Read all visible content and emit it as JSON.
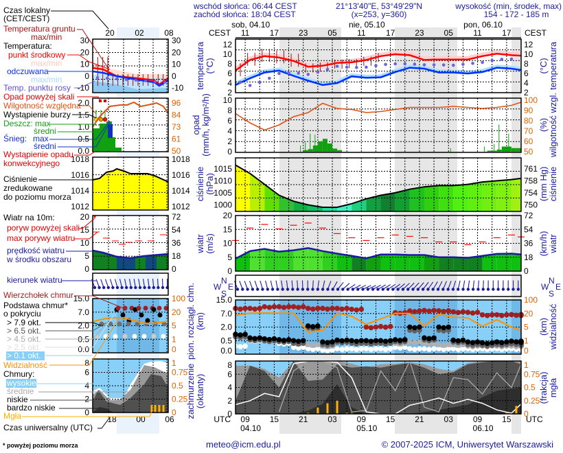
{
  "header": {
    "sunrise": "wschód słońca: 06:44 CEST",
    "sunset": "zachód słońca: 18:04 CEST",
    "coords": "21°13'40\"E, 53°49'29\"N",
    "grid": "(x=253,  y=360)",
    "elevation_title": "wysokość (min, środek, max)",
    "elevation": "154 - 172 - 185 m"
  },
  "time_axis": {
    "tz_top": "CEST",
    "tz_bottom": "UTC",
    "days_top": [
      "sob, 04.10",
      "nie, 05.10",
      "pon, 06.10"
    ],
    "days_bottom": [
      "04.10",
      "05.10",
      "06.10"
    ],
    "hours_cest": [
      "11",
      "17",
      "23",
      "05",
      "11",
      "17",
      "23",
      "05",
      "11",
      "17"
    ],
    "hours_utc": [
      "09",
      "15",
      "21",
      "03",
      "09",
      "15",
      "21",
      "03",
      "09",
      "15"
    ]
  },
  "legend": {
    "local_time": "Czas lokalny",
    "local_time2": "(CET/CEST)",
    "local_hours": [
      "20",
      "02",
      "08"
    ],
    "utc_hours": [
      "18",
      "00",
      "06"
    ],
    "ground_temp": "Temperatura gruntu",
    "ground_temp2": "max/min",
    "temperature": "Temperatura:",
    "midpoint": "punkt środkowy",
    "maxmin1": "max/min",
    "feels": "odczuwana",
    "maxmin2": "max/min",
    "dew": "Temp. punktu rosy",
    "precip_above": "Opad powyżej skali",
    "rh": "Wilgotność względna",
    "storm": "Wystąpienie burzy",
    "rain": "Deszcz: max",
    "rain_mean": "średni",
    "snow": "Śnieg:",
    "snow_max": "max",
    "snow_mean": "średni",
    "precip_occ": "Wystąpienie opadu",
    "convective": "konwekcyjnego",
    "pressure1": "Ciśnienie",
    "pressure2": "zredukowane",
    "pressure3": "do poziomu morza",
    "wind10": "Wiatr na 10m:",
    "gust_above": "poryw powyżej skali",
    "gust_max": "max porywy wiatru",
    "wind_speed1": "prędkość wiatru",
    "wind_speed2": "w środku obszaru",
    "wind_dir": "kierunek wiatru",
    "cloud_top": "Wierzchołek chmur",
    "cloud_base1": "Podstawa chmur*",
    "cloud_base2": "o pokryciu",
    "okt": [
      "> 7.9 okt.",
      "> 6.5 okt.",
      "> 4.5 okt.",
      "> 2.5 okt.",
      "> 0.1 okt."
    ],
    "visibility": "Widzialność",
    "clouds": "Chmury:",
    "high": "wysokie",
    "medium": "średnie",
    "low": "niskie",
    "very_low": "bardzo niskie",
    "fog": "Mgła",
    "utc": "Czas uniwersalny (UTC)",
    "footnote": "* powyżej poziomu morza"
  },
  "left_axes": {
    "temp": [
      "30",
      "20",
      "10",
      "0",
      "-10"
    ],
    "precip": [
      "2.0",
      "1.5",
      "1.0",
      "0.5",
      "0.0"
    ],
    "rh": [
      "96",
      "84",
      "73",
      "61",
      "50"
    ],
    "pressure": [
      "1018",
      "1016",
      "1014",
      "1012"
    ],
    "wind": [
      "20",
      "15",
      "10",
      "5",
      "0"
    ],
    "wind_kmh": [
      "72",
      "54",
      "36",
      "18",
      "0"
    ],
    "cloudbase": [
      "15.0",
      "7.0",
      "2.0",
      "0.5",
      "0.0"
    ],
    "vis": [
      "100",
      "20",
      "5",
      "1",
      "0"
    ],
    "clouds": [
      "8",
      "6",
      "4",
      "2",
      "0"
    ],
    "fog": [
      "1",
      "0.75",
      "0.5",
      "0.25",
      "0"
    ]
  },
  "axis_titles": {
    "temp_l": [
      "temperatura",
      "(°C)"
    ],
    "temp_r": [
      "(°C)",
      "temperatura"
    ],
    "precip_l": [
      "opad",
      "(mm/h, kg/m²/h)"
    ],
    "precip_r": [
      "(%)",
      "wilgotność wzgl."
    ],
    "pressure_l": [
      "ciśnienie",
      "(hPa)"
    ],
    "pressure_r": [
      "(mm Hg)",
      "ciśnienie"
    ],
    "wind_l": [
      "wiatr",
      "(m/s)"
    ],
    "wind_r": [
      "(km/h)",
      "wiatr"
    ],
    "cloudbase_l": [
      "pion. rozciągł. chm.",
      "(km)"
    ],
    "cloudbase_r": [
      "(km)",
      "widzialność"
    ],
    "clouds_l": [
      "zachmurzenie",
      "(oktanty)"
    ],
    "clouds_r": [
      "(frakcja)",
      "mgła"
    ],
    "compass": [
      "W",
      "N",
      "S",
      "E"
    ]
  },
  "footer": {
    "email": "meteo@icm.edu.pl",
    "copyright": "© 2007-2025 ICM, Uniwersytet Warszawski"
  },
  "colors": {
    "temp": "#ff0000",
    "feels": "#0030ff",
    "dew": "#7060e0",
    "ground": "#a01010",
    "rh": "#e05010",
    "rain": "#10a010",
    "pressure": "#000000",
    "gust": "#ff0000",
    "wind": "#1a1aa0",
    "cloud_top": "#a02020",
    "visibility": "#ff9000",
    "sky": "#88d0f8",
    "fog": "#ffb000",
    "night": "#e6e6e6"
  },
  "chart_data": [
    {
      "type": "line",
      "name": "temperature",
      "step_hours": 3,
      "ylim": [
        2,
        12
      ],
      "yticks": [
        2,
        4,
        6,
        8,
        10,
        12
      ],
      "series": [
        {
          "name": "punkt środkowy",
          "values": [
            6.6,
            8.8,
            9.6,
            9.3,
            8.6,
            7.4,
            7.6,
            8.2,
            8.3,
            8.8,
            9.6,
            10.0,
            9.8,
            8.8,
            8.9,
            8.9,
            8.9,
            9.6,
            10.1,
            9.8,
            9.7
          ]
        },
        {
          "name": "odczuwana",
          "values": [
            3.6,
            5.0,
            6.2,
            6.6,
            5.5,
            4.5,
            3.6,
            4.0,
            5.4,
            5.1,
            5.2,
            6.3,
            7.2,
            7.0,
            6.2,
            6.2,
            6.0,
            6.3,
            7.2,
            7.0,
            6.7
          ]
        },
        {
          "name": "Temp. punktu rosy",
          "values": [
            4.5,
            3.5,
            4.5,
            6.0,
            6.2,
            5.8,
            6.5,
            7.5,
            7.2,
            7.3,
            7.8,
            8.0,
            8.0,
            7.8,
            7.8,
            7.7,
            8.0,
            8.3,
            8.9,
            9.0,
            9.2
          ]
        }
      ]
    },
    {
      "type": "bar+line",
      "name": "precipitation",
      "ylim": [
        0,
        10
      ],
      "y2lim": [
        50,
        100
      ],
      "yticks": [
        0,
        2,
        4,
        6,
        8,
        10
      ],
      "y2ticks": [
        50,
        60,
        70,
        80,
        90,
        100
      ],
      "rh": [
        87,
        78,
        71,
        76,
        84,
        88,
        97,
        92,
        91,
        88,
        89,
        91,
        93,
        93,
        93,
        94,
        93,
        92,
        93,
        95,
        98
      ],
      "precip_hourly": [
        0,
        0,
        0,
        0,
        0,
        0,
        0,
        0,
        0,
        0,
        0,
        0,
        0,
        0,
        0.3,
        0.5,
        1.2,
        2.0,
        2.5,
        1.6,
        0.6,
        0.3,
        0,
        0,
        0,
        0,
        0,
        0,
        0,
        0,
        0,
        0,
        0,
        0,
        0,
        0,
        0,
        0,
        0,
        0,
        0,
        0,
        0,
        0,
        0,
        0,
        0,
        0,
        0,
        0,
        0,
        0,
        0.2,
        0.2,
        0.4,
        1.0,
        1.0,
        0.7,
        0.7
      ],
      "precip_max_hourly": [
        0,
        0,
        0,
        0,
        0,
        0,
        0,
        0,
        0,
        0,
        0,
        0,
        0,
        1.2,
        1.8,
        3.5,
        3.3,
        2.0,
        1.3,
        0,
        0,
        0,
        0,
        0,
        0,
        0,
        0,
        0,
        0,
        0,
        0,
        0,
        0,
        0,
        0,
        0,
        0,
        0,
        0,
        0,
        0,
        0,
        0,
        0,
        0.7,
        0,
        0,
        0,
        0,
        0,
        0,
        1.0,
        0,
        1.5,
        5.3,
        0,
        3.5,
        0,
        0
      ]
    },
    {
      "type": "area",
      "name": "pressure",
      "ylim": [
        997.3,
        1019.5
      ],
      "yticks": [
        1000,
        1005,
        1010,
        1015
      ],
      "y2ticks": [
        750,
        754,
        758,
        761
      ],
      "values": [
        1016.5,
        1013.0,
        1008.5,
        1004.0,
        1001.5,
        1000.0,
        999.0,
        999.0,
        1000.5,
        1002.5,
        1004.0,
        1005.0,
        1006.5,
        1007.5,
        1008.0,
        1008.0,
        1008.5,
        1009.5,
        1010.0,
        1010.5,
        1011.0
      ]
    },
    {
      "type": "area+steps",
      "name": "wind",
      "ylim": [
        0,
        20
      ],
      "yticks": [
        0,
        5,
        10,
        15,
        20
      ],
      "y2ticks": [
        0,
        18,
        36,
        54,
        72
      ],
      "speed": [
        4.5,
        7.2,
        8.0,
        7.0,
        7.5,
        8.3,
        7.2,
        6.3,
        5.5,
        4.6,
        6.0,
        6.0,
        5.8,
        5.8,
        5.0,
        5.0,
        4.8,
        5.5,
        6.2,
        6.3,
        6.0
      ],
      "gust": [
        11,
        15.5,
        16.8,
        15.2,
        16.5,
        17.3,
        15.5,
        13.5,
        12.0,
        11.0,
        12.0,
        13.0,
        12.5,
        12.0,
        10.5,
        10.5,
        9.5,
        10.5,
        12.0,
        13.0,
        12.3
      ],
      "direction_from_deg": [
        160,
        160,
        165,
        170,
        175,
        180,
        190,
        215,
        240,
        245,
        240,
        235,
        225,
        220,
        210,
        200,
        190,
        185,
        180,
        180,
        180
      ]
    },
    {
      "type": "scatter+line",
      "name": "cloud base",
      "yticks": [
        0,
        0.5,
        2,
        7,
        15
      ],
      "y2ticks": [
        0,
        1,
        5,
        20,
        100
      ],
      "cloud_top_km": [
        10,
        10,
        11,
        11,
        11,
        10,
        10,
        10,
        9.5,
        2.0,
        2.2,
        7.5,
        8.5,
        8.8,
        8.6,
        8.0,
        7.7,
        6.5,
        6.5,
        6.6,
        6.5
      ],
      "base_gt79": [
        1.2,
        0.8,
        0.7,
        0.6,
        0.5,
        2.4,
        0.45,
        0.55,
        0.5,
        0.5,
        0.5,
        0.6,
        2.0,
        0.8,
        2.0,
        0.55,
        0.45,
        0.42,
        0.45,
        0.48,
        0.45
      ],
      "base_gt45": [
        0.9,
        0.6,
        0.6,
        0.5,
        0.4,
        0.35,
        0.3,
        0.45,
        0.4,
        0.4,
        0.45,
        0.4,
        0.45,
        0.4,
        0.35,
        0.35,
        0.3,
        0.3,
        0.3,
        0.3,
        0.3
      ],
      "base_gt01": [
        0.3,
        0.5,
        0.5,
        0.4,
        0.25,
        0.2,
        0.15,
        0.2,
        0.2,
        0.2,
        0.2,
        0.25,
        0.2,
        0.2,
        0.2,
        0.2,
        0.2,
        0.2,
        0.2,
        0.2,
        0.2
      ],
      "visibility_km": [
        18,
        22,
        23,
        22,
        21,
        3.5,
        4,
        22,
        17,
        8,
        14,
        21,
        20,
        6,
        19,
        16,
        15,
        6,
        13,
        5,
        4
      ]
    },
    {
      "type": "area",
      "name": "clouds",
      "ylim": [
        0,
        8
      ],
      "y2lim": [
        0,
        1
      ],
      "yticks": [
        0,
        2,
        4,
        6,
        8
      ],
      "y2ticks": [
        0,
        0.25,
        0.5,
        0.75,
        1
      ],
      "total_okta": [
        7.3,
        7.3,
        6.8,
        5.5,
        8,
        8,
        8,
        8,
        7.6,
        7.0,
        7.5,
        7.6,
        7.8,
        7.5,
        6.8,
        6.5,
        7.7,
        8,
        8,
        8,
        8
      ],
      "low_okta": [
        2.0,
        7.3,
        6.5,
        4.0,
        8,
        5,
        5.2,
        7.5,
        7.0,
        7.2,
        7.0,
        7.4,
        7.7,
        7.0,
        6.0,
        6.3,
        7.5,
        7.8,
        8,
        8,
        7.5
      ],
      "very_low_okta": [
        0,
        0,
        0,
        0,
        0,
        0.5,
        1.5,
        4.5,
        1,
        0,
        0,
        0,
        0,
        0.3,
        0.6,
        1.0,
        1.4,
        2.5,
        3.5,
        3.8,
        4.0
      ],
      "high_line": [
        1.4,
        2.0,
        3.1,
        2.6,
        7.6,
        8,
        8,
        7.8,
        5.5,
        0.3,
        0,
        0,
        1.3,
        1.8,
        2.4,
        1.6,
        2.2,
        1.6,
        0.6,
        0.1,
        1.5
      ],
      "medium_line": [
        null,
        null,
        null,
        0.3,
        6.5,
        8,
        8,
        7.0,
        0.3,
        0.5,
        6.5,
        3.5,
        8,
        1.0,
        0.3,
        5.5,
        5.2,
        3.0,
        6.2,
        4.0,
        7.5
      ],
      "fog_fraction_hourly": [
        0,
        0,
        0,
        0,
        0,
        0,
        0,
        0,
        0,
        0,
        0,
        0,
        0,
        0,
        0,
        0.02,
        0,
        0.12,
        0,
        0.2,
        0,
        0.25,
        0,
        0.02,
        0.02,
        0,
        0,
        0,
        0,
        0,
        0,
        0,
        0,
        0,
        0,
        0,
        0,
        0,
        0,
        0,
        0,
        0,
        0,
        0,
        0,
        0,
        0,
        0,
        0,
        0,
        0,
        0,
        0,
        0,
        0,
        0,
        0.03,
        0,
        0.15
      ]
    }
  ]
}
